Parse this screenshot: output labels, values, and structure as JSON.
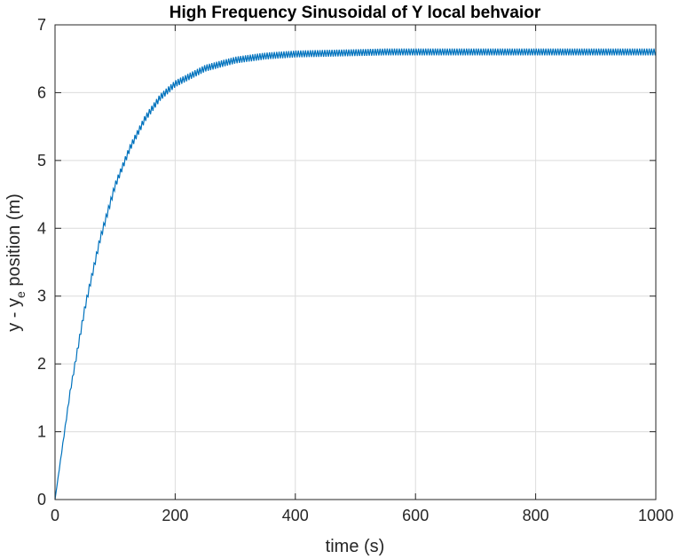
{
  "chart_data": {
    "type": "line",
    "title": "High Frequency Sinusoidal of Y local behvaior",
    "xlabel": "time (s)",
    "ylabel_parts": [
      "y - y",
      "e",
      " position (m)"
    ],
    "xlim": [
      0,
      1000
    ],
    "ylim": [
      0,
      7
    ],
    "xticks": [
      0,
      200,
      400,
      600,
      800,
      1000
    ],
    "yticks": [
      0,
      1,
      2,
      3,
      4,
      5,
      6,
      7
    ],
    "grid": true,
    "line_color": "#0072BD",
    "series": [
      {
        "x": [
          0,
          25,
          50,
          75,
          100,
          125,
          150,
          175,
          200,
          250,
          300,
          350,
          400,
          450,
          500,
          550,
          600,
          650,
          700,
          750,
          800,
          850,
          900,
          950,
          1000
        ],
        "values": [
          0,
          1.58,
          2.84,
          3.84,
          4.63,
          5.19,
          5.62,
          5.93,
          6.13,
          6.36,
          6.48,
          6.54,
          6.57,
          6.58,
          6.59,
          6.6,
          6.6,
          6.6,
          6.6,
          6.6,
          6.6,
          6.6,
          6.6,
          6.6,
          6.6
        ]
      }
    ],
    "oscillation": {
      "amplitude": 0.05,
      "period": 4
    }
  }
}
